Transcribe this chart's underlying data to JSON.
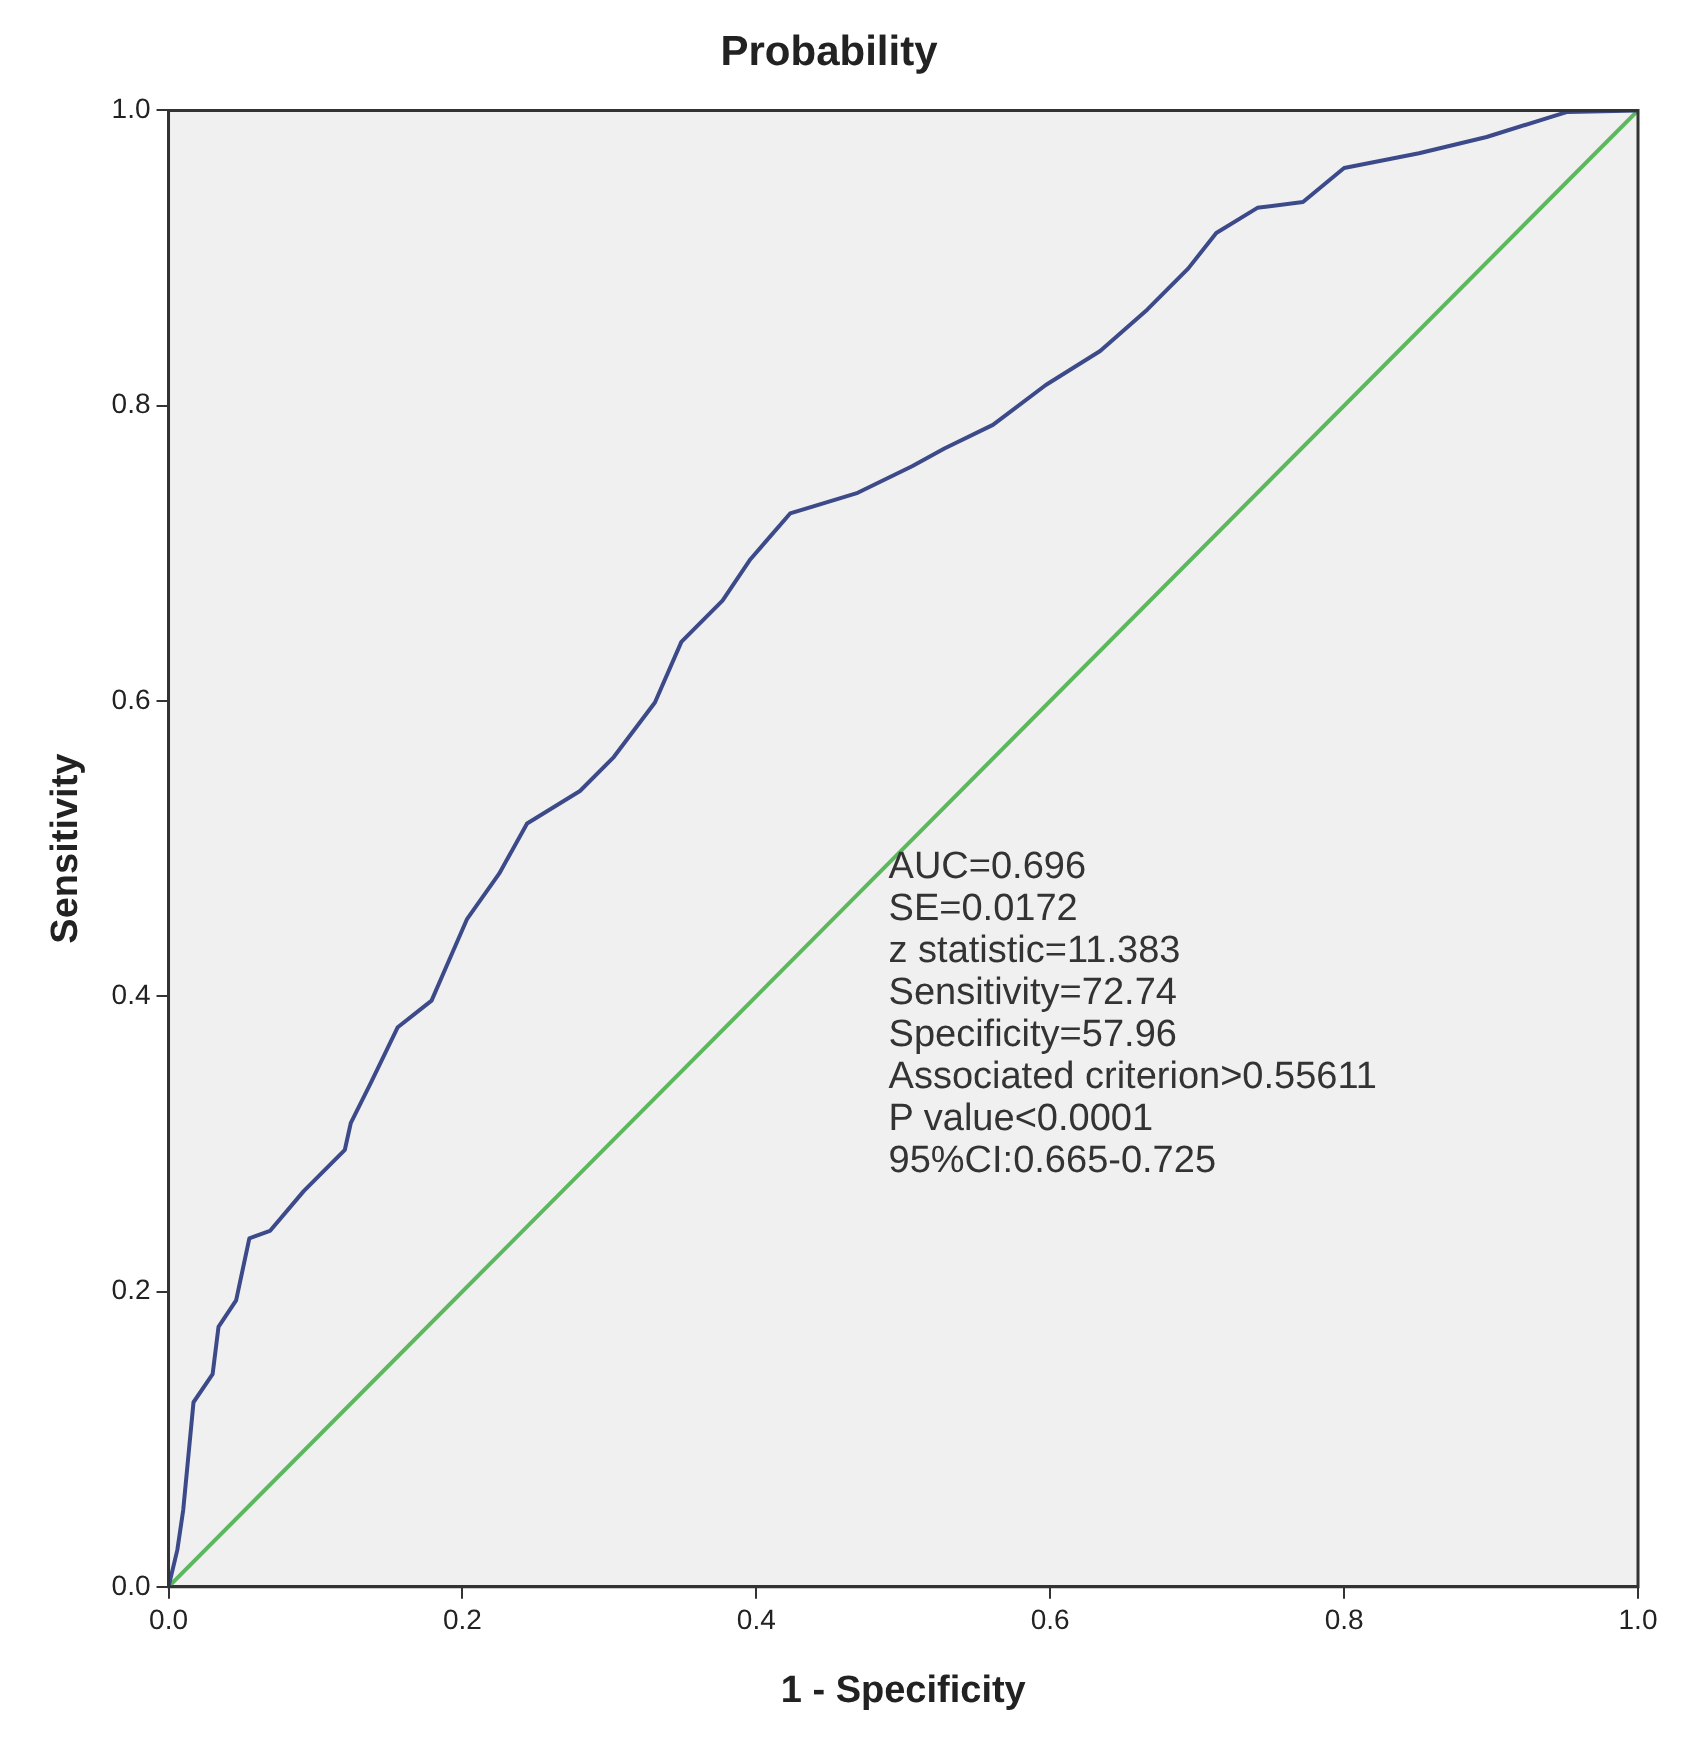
{
  "chart_data": {
    "type": "line",
    "title": "Probability",
    "xlabel": "1 - Specificity",
    "ylabel": "Sensitivity",
    "xlim": [
      0,
      1
    ],
    "ylim": [
      0,
      1
    ],
    "xticks": [
      {
        "value": 0,
        "label": "0.0"
      },
      {
        "value": 0.2,
        "label": "0.2"
      },
      {
        "value": 0.4,
        "label": "0.4"
      },
      {
        "value": 0.6,
        "label": "0.6"
      },
      {
        "value": 0.8,
        "label": "0.8"
      },
      {
        "value": 1,
        "label": "1.0"
      }
    ],
    "yticks": [
      {
        "value": 0,
        "label": "0.0"
      },
      {
        "value": 0.2,
        "label": "0.2"
      },
      {
        "value": 0.4,
        "label": "0.4"
      },
      {
        "value": 0.6,
        "label": "0.6"
      },
      {
        "value": 0.8,
        "label": "0.8"
      },
      {
        "value": 1,
        "label": "1.0"
      }
    ],
    "grid": false,
    "legend": false,
    "marker": "none",
    "line_style": "solid",
    "series": [
      {
        "color": "#3c4a8a",
        "x": [
          0,
          0.006,
          0.01,
          0.017,
          0.03,
          0.034,
          0.046,
          0.055,
          0.069,
          0.092,
          0.12,
          0.124,
          0.138,
          0.156,
          0.179,
          0.189,
          0.203,
          0.225,
          0.244,
          0.28,
          0.303,
          0.331,
          0.349,
          0.377,
          0.396,
          0.423,
          0.469,
          0.506,
          0.528,
          0.561,
          0.597,
          0.634,
          0.666,
          0.694,
          0.713,
          0.741,
          0.772,
          0.8,
          0.851,
          0.897,
          0.942,
          0.952,
          1
        ],
        "values": [
          0,
          0.025,
          0.052,
          0.125,
          0.144,
          0.176,
          0.194,
          0.236,
          0.241,
          0.268,
          0.296,
          0.314,
          0.342,
          0.379,
          0.397,
          0.42,
          0.452,
          0.483,
          0.517,
          0.539,
          0.562,
          0.599,
          0.64,
          0.668,
          0.696,
          0.727,
          0.741,
          0.759,
          0.771,
          0.787,
          0.814,
          0.837,
          0.865,
          0.893,
          0.917,
          0.934,
          0.938,
          0.961,
          0.971,
          0.982,
          0.996,
          0.999,
          1
        ]
      },
      {
        "color": "#5cb85c",
        "x": [
          0,
          1
        ],
        "values": [
          0,
          1
        ]
      }
    ],
    "annotations": [
      "AUC=0.696",
      "SE=0.0172",
      "z statistic=11.383",
      "Sensitivity=72.74",
      "Specificity=57.96",
      "Associated criterion>0.55611",
      "P value<0.0001",
      "95%CI:0.665-0.725"
    ]
  }
}
